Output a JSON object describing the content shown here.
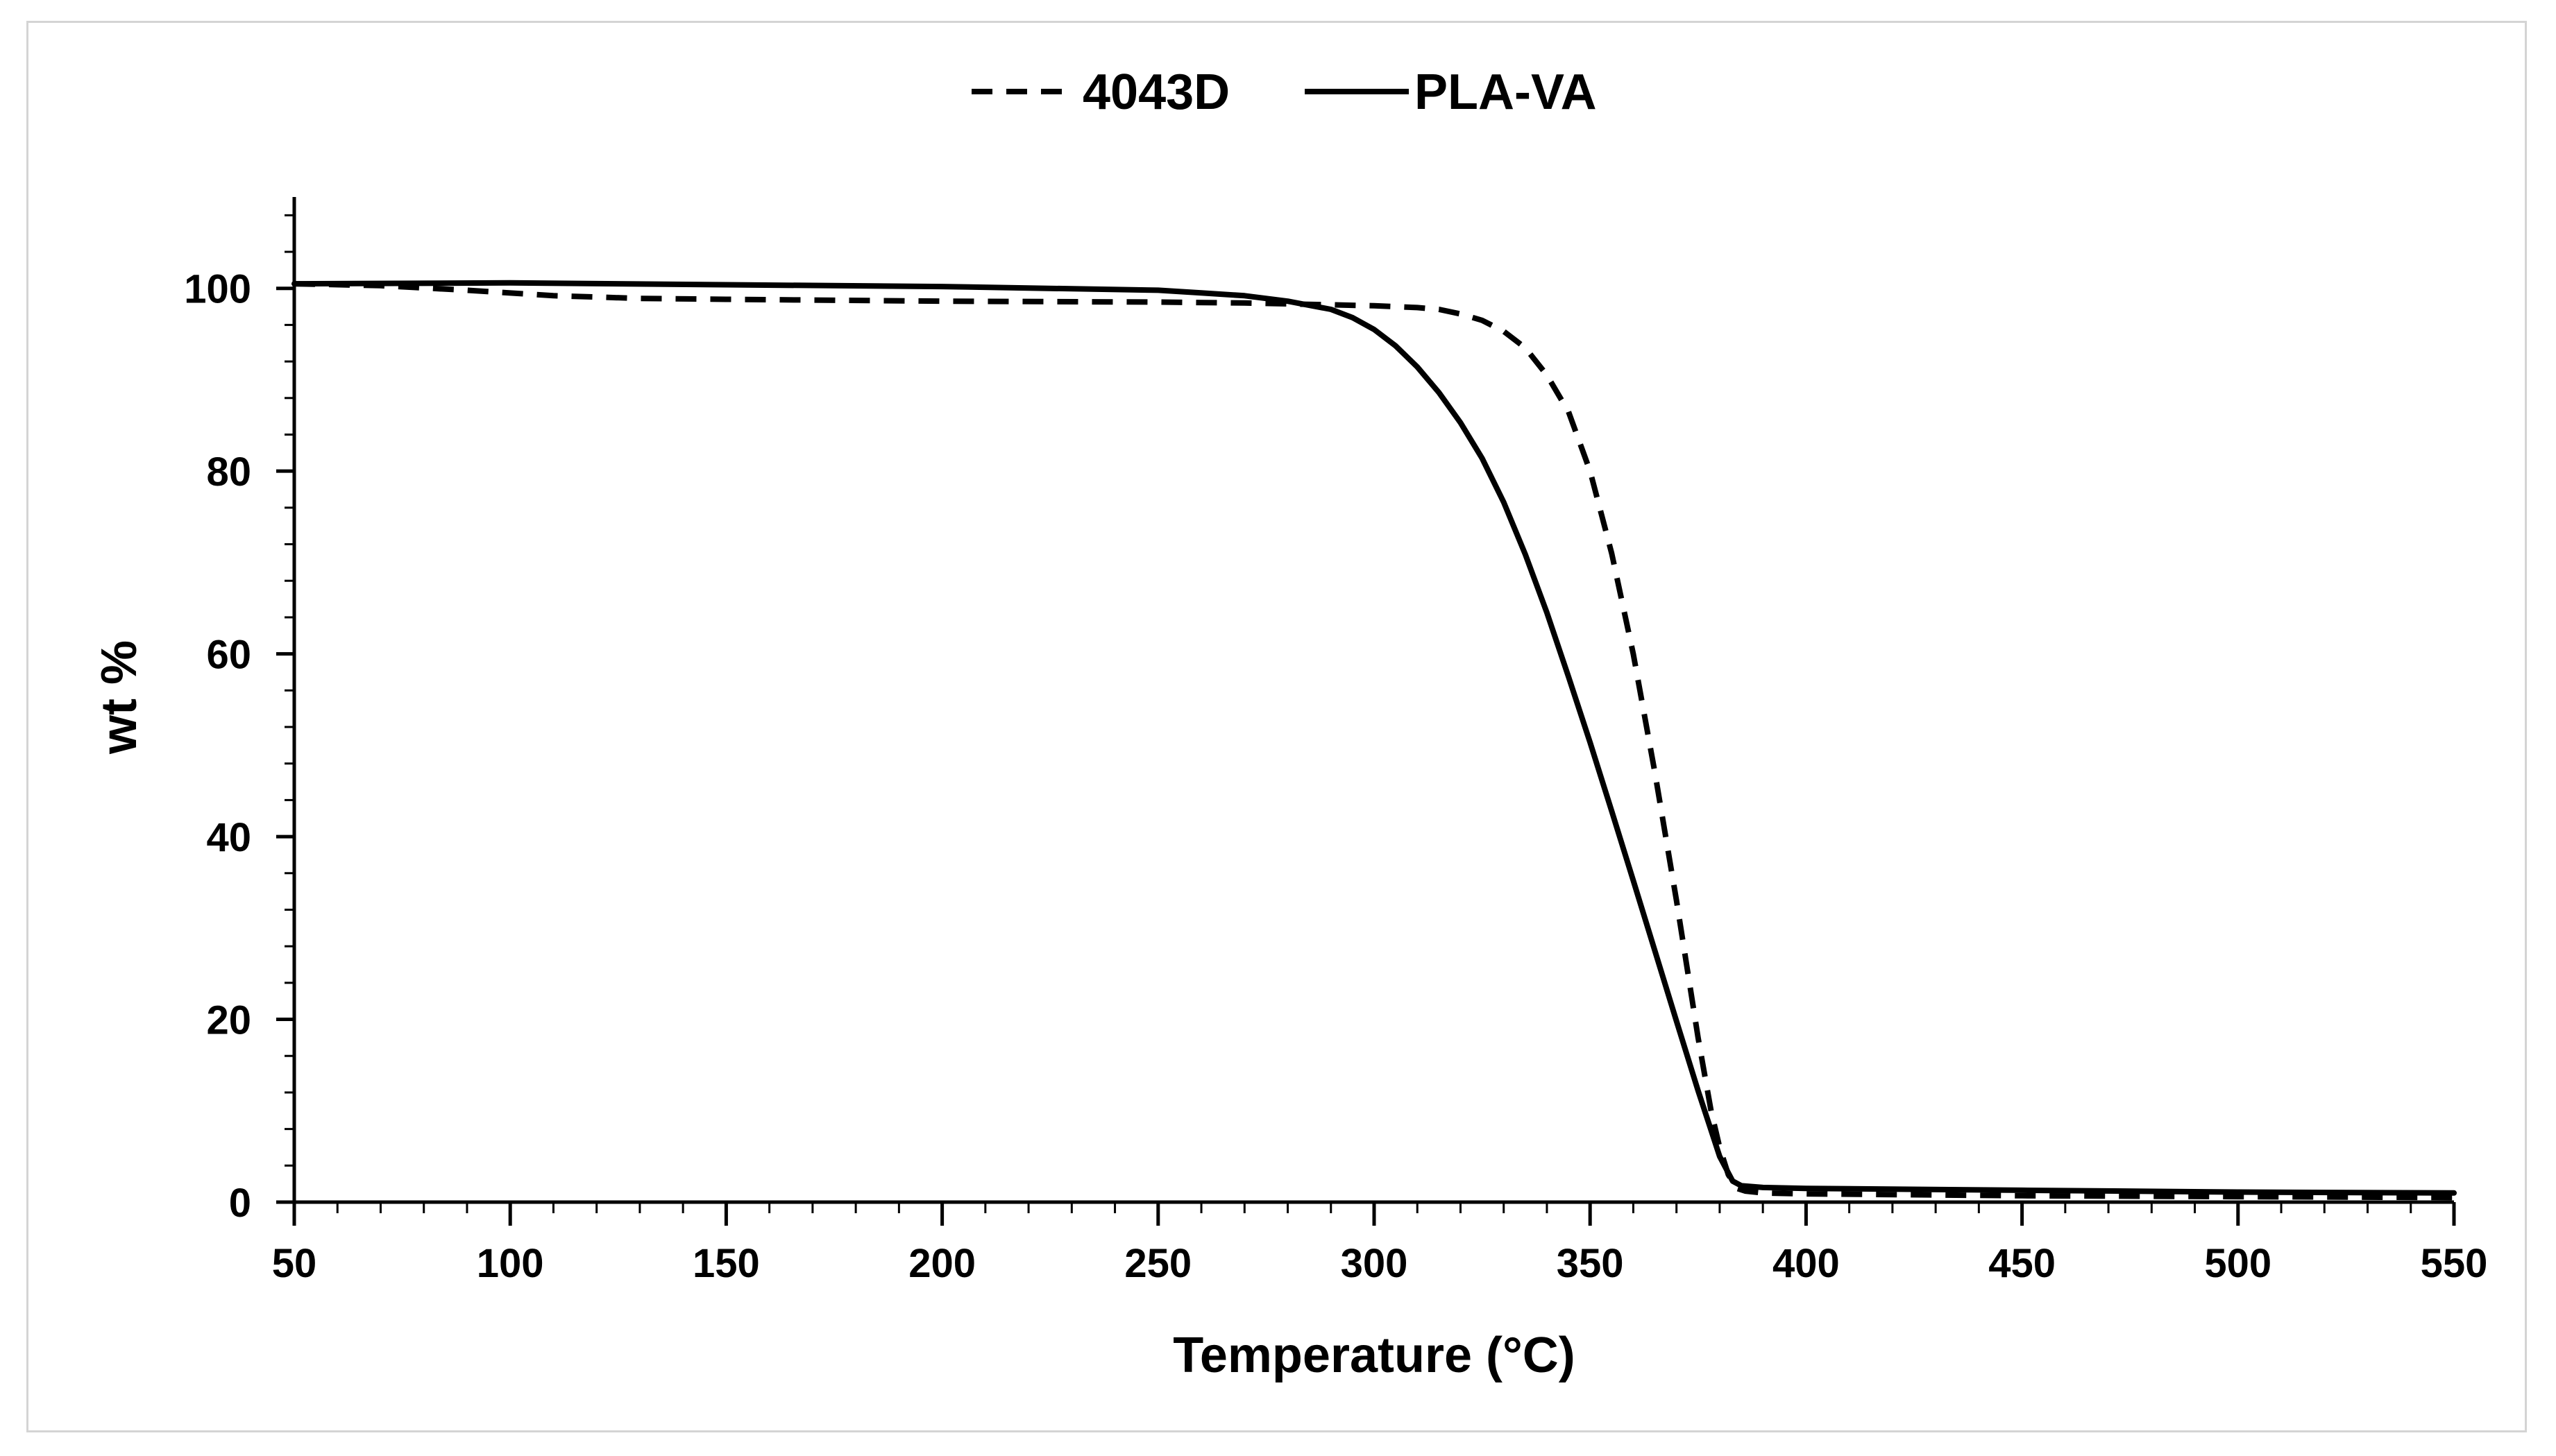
{
  "chart_data": {
    "type": "line",
    "title": "",
    "xlabel": "Temperature (°C)",
    "ylabel": "wt %",
    "xlim": [
      50,
      550
    ],
    "ylim": [
      0,
      110
    ],
    "x_ticks": [
      50,
      100,
      150,
      200,
      250,
      300,
      350,
      400,
      450,
      500,
      550
    ],
    "x_tick_labels": [
      "50",
      "100",
      "150",
      "200",
      "250",
      "300",
      "350",
      "400",
      "450",
      "500",
      "550"
    ],
    "y_ticks": [
      0,
      20,
      40,
      60,
      80,
      100
    ],
    "y_tick_labels": [
      "0",
      "20",
      "40",
      "60",
      "80",
      "100"
    ],
    "grid": false,
    "legend_position": "top-center",
    "colors": {
      "line": "#000000",
      "axis": "#000000",
      "frame": "#d4d4d4"
    },
    "series": [
      {
        "name": "4043D",
        "style": "dashed",
        "x": [
          50,
          70,
          90,
          110,
          130,
          150,
          200,
          250,
          270,
          280,
          290,
          300,
          310,
          315,
          320,
          325,
          330,
          335,
          340,
          345,
          350,
          355,
          360,
          365,
          370,
          375,
          378,
          380,
          382,
          384,
          386,
          390,
          400,
          450,
          500,
          550
        ],
        "y": [
          100.5,
          100.3,
          99.8,
          99.2,
          98.9,
          98.8,
          98.6,
          98.5,
          98.4,
          98.3,
          98.2,
          98.1,
          97.9,
          97.7,
          97.2,
          96.5,
          95.3,
          93.5,
          90.5,
          86.5,
          80,
          71,
          60,
          47,
          33,
          18,
          10,
          6,
          3,
          1.5,
          1.2,
          1.0,
          0.9,
          0.7,
          0.6,
          0.5
        ]
      },
      {
        "name": "PLA-VA",
        "style": "solid",
        "x": [
          50,
          100,
          150,
          200,
          250,
          260,
          270,
          280,
          290,
          295,
          300,
          305,
          310,
          315,
          320,
          325,
          330,
          335,
          340,
          345,
          350,
          355,
          360,
          365,
          370,
          375,
          380,
          383,
          385,
          390,
          400,
          450,
          500,
          550
        ],
        "y": [
          100.5,
          100.6,
          100.4,
          100.2,
          99.8,
          99.5,
          99.2,
          98.6,
          97.7,
          96.8,
          95.5,
          93.7,
          91.4,
          88.6,
          85.3,
          81.4,
          76.6,
          70.9,
          64.5,
          57.5,
          50.3,
          42.8,
          35.2,
          27.5,
          19.8,
          12.2,
          5.0,
          2.3,
          1.8,
          1.6,
          1.5,
          1.3,
          1.1,
          1.0
        ]
      }
    ]
  }
}
